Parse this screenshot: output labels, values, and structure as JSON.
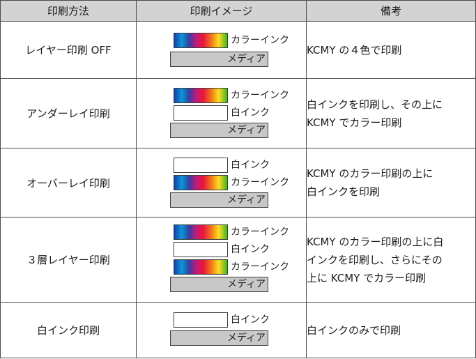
{
  "headers": [
    "印刷方法",
    "印刷イメージ",
    "備考"
  ],
  "layer_labels": {
    "color": "カラーインク",
    "white": "白インク",
    "media": "メディア"
  },
  "rows": [
    {
      "method": "レイヤー印刷 OFF",
      "note_lines": [
        "KCMY の４色で印刷"
      ]
    },
    {
      "method": "アンダーレイ印刷",
      "note_lines": [
        "白インクを印刷し、その上に",
        "KCMY でカラー印刷"
      ]
    },
    {
      "method": "オーバーレイ印刷",
      "note_lines": [
        "KCMY のカラー印刷の上に",
        "白インクを印刷"
      ]
    },
    {
      "method": "３層レイヤー印刷",
      "note_lines": [
        "KCMY のカラー印刷の上に白",
        "インクを印刷し、さらにその",
        "上に KCMY でカラー印刷"
      ]
    },
    {
      "method": "白インク印刷",
      "note_lines": [
        "白インクのみで印刷"
      ]
    }
  ]
}
